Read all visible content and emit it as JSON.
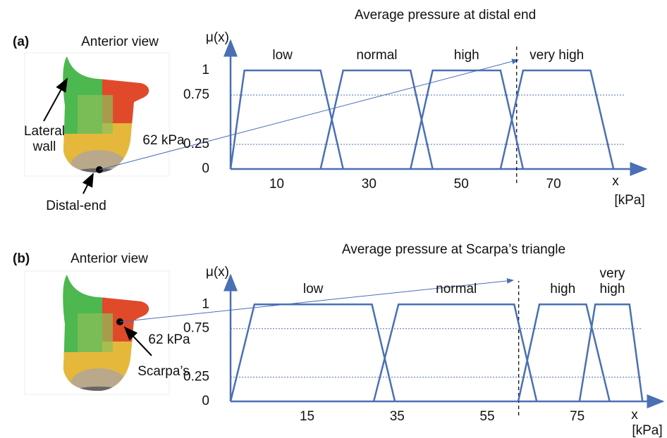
{
  "chart_data": [
    {
      "type": "line",
      "panel_label": "(a)",
      "view_label": "Anterior view",
      "title": "Average pressure at distal end",
      "annotations": [
        "Lateral wall",
        "62 kPa",
        "Distal-end"
      ],
      "y_label": "μ(x)",
      "x_label": "x",
      "x_unit": "[kPa]",
      "xlim": [
        0,
        90
      ],
      "xticks": [
        10,
        30,
        50,
        70
      ],
      "ylim": [
        0,
        1.3
      ],
      "yticks": [
        0,
        0.25,
        0.75,
        1
      ],
      "reference_x": 62,
      "color": "#4a6fb5",
      "series": [
        {
          "name": "low",
          "color": "#4a6fb5",
          "x": [
            0,
            3,
            19.5,
            24.4
          ],
          "values": [
            0,
            1,
            1,
            0
          ]
        },
        {
          "name": "normal",
          "color": "#4a6fb5",
          "x": [
            19.5,
            24.4,
            39,
            43.8
          ],
          "values": [
            0,
            1,
            1,
            0
          ]
        },
        {
          "name": "high",
          "color": "#4a6fb5",
          "x": [
            39,
            43.8,
            58.5,
            63.4
          ],
          "values": [
            0,
            1,
            1,
            0
          ]
        },
        {
          "name": "very high",
          "color": "#4a6fb5",
          "x": [
            58.5,
            63.4,
            78,
            83
          ],
          "values": [
            0,
            1,
            1,
            0
          ]
        }
      ]
    },
    {
      "type": "line",
      "panel_label": "(b)",
      "view_label": "Anterior view",
      "title": "Average pressure at Scarpa’s triangle",
      "annotations": [
        "62 kPa",
        "Scarpa’s"
      ],
      "y_label": "μ(x)",
      "x_label": "x",
      "x_unit": "[kPa]",
      "xlim": [
        -2,
        94
      ],
      "xticks": [
        15,
        35,
        55,
        75
      ],
      "ylim": [
        0,
        1.3
      ],
      "yticks": [
        0,
        0.25,
        0.75,
        1
      ],
      "reference_x": 62,
      "color": "#4a6fb5",
      "series": [
        {
          "name": "low",
          "color": "#4a6fb5",
          "x": [
            -2,
            3.3,
            29.4,
            34.5
          ],
          "values": [
            0,
            1,
            1,
            0
          ]
        },
        {
          "name": "normal",
          "color": "#4a6fb5",
          "x": [
            29.8,
            35.3,
            61,
            66
          ],
          "values": [
            0,
            1,
            1,
            0
          ]
        },
        {
          "name": "high",
          "color": "#4a6fb5",
          "x": [
            61.9,
            66.6,
            77,
            82.2
          ],
          "values": [
            0,
            1,
            1,
            0
          ]
        },
        {
          "name": "very high",
          "color": "#4a6fb5",
          "x": [
            75.5,
            79,
            86.6,
            89.5
          ],
          "values": [
            0,
            1,
            1,
            0
          ]
        }
      ]
    }
  ]
}
